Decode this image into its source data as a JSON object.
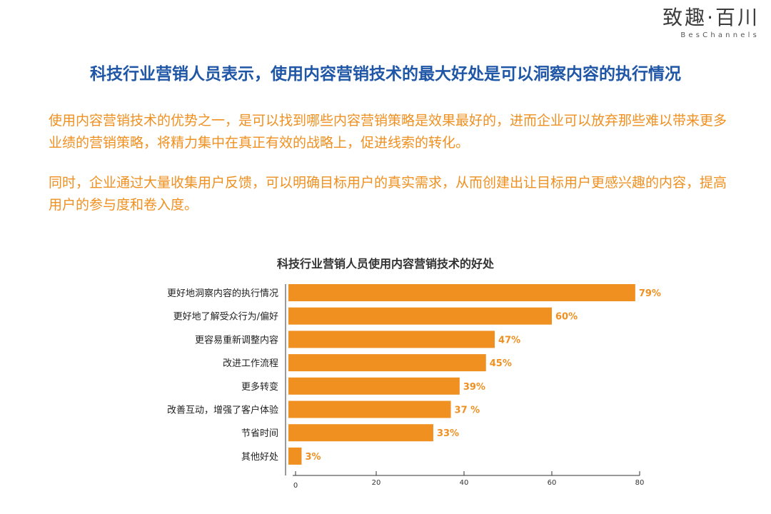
{
  "logo": {
    "main": "致趣·百川",
    "sub": "BesChannels"
  },
  "headline": "科技行业营销人员表示，使用内容营销技术的最大好处是可以洞察内容的执行情况",
  "paragraphs": [
    "使用内容营销技术的优势之一，是可以找到哪些内容营销策略是效果最好的，进而企业可以放弃那些难以带来更多业绩的营销策略，将精力集中在真正有效的战略上，促进线索的转化。",
    "同时，企业通过大量收集用户反馈，可以明确目标用户的真实需求，从而创建出让目标用户更感兴趣的内容，提高用户的参与度和卷入度。"
  ],
  "chart_data": {
    "type": "bar",
    "orientation": "horizontal",
    "title": "科技行业营销人员使用内容营销技术的好处",
    "categories": [
      "更好地洞察内容的执行情况",
      "更好地了解受众行为/偏好",
      "更容易重新调整内容",
      "改进工作流程",
      "更多转变",
      "改善互动，增强了客户体验",
      "节省时间",
      "其他好处"
    ],
    "values": [
      79,
      60,
      47,
      45,
      39,
      37,
      33,
      3
    ],
    "value_labels": [
      "79%",
      "60%",
      "47%",
      "45%",
      "39%",
      "37 %",
      "33%",
      "3%"
    ],
    "xlim": [
      0,
      80
    ],
    "xticks": [
      0,
      20,
      40,
      60,
      80
    ],
    "grid": false,
    "bar_color": "#ef9021"
  }
}
